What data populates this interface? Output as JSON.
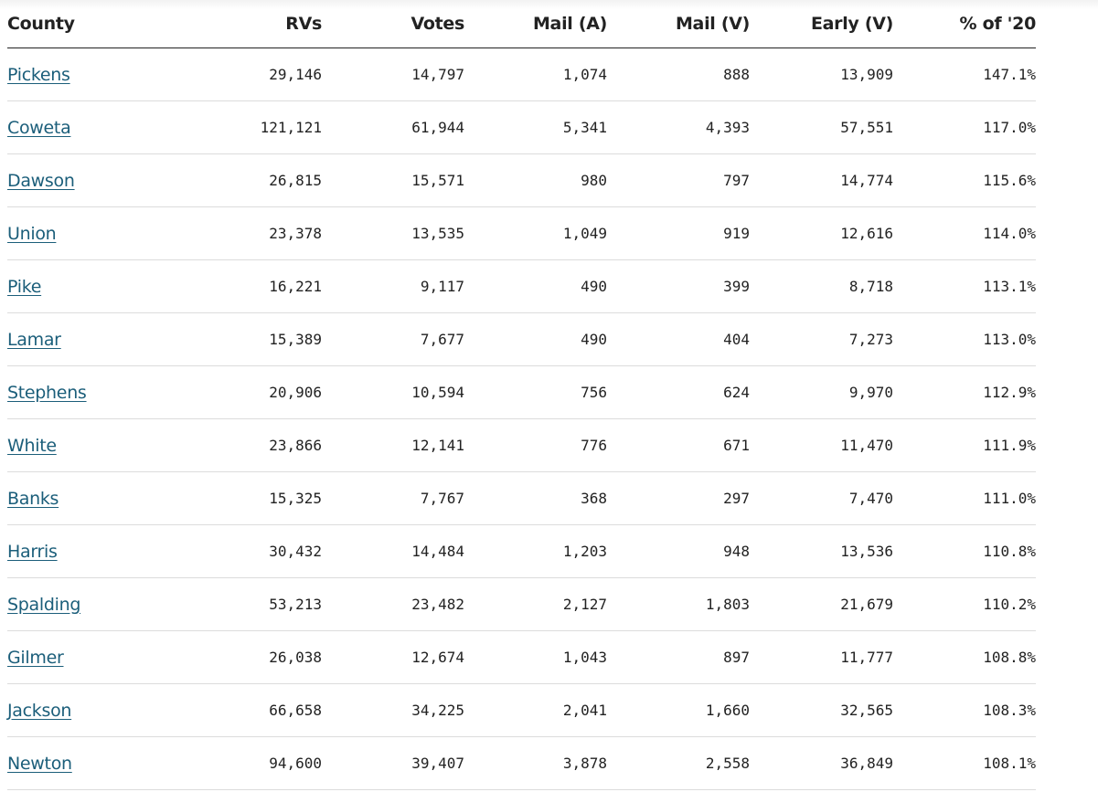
{
  "colors": {
    "link": "#1b5e7a",
    "text": "#222222",
    "row_divider": "#dcdcdc",
    "header_rule": "#222222"
  },
  "table": {
    "headers": [
      "County",
      "RVs",
      "Votes",
      "Mail (A)",
      "Mail (V)",
      "Early (V)",
      "% of '20"
    ],
    "rows": [
      {
        "county": "Pickens",
        "rvs": "29,146",
        "votes": "14,797",
        "mail_a": "1,074",
        "mail_v": "888",
        "early_v": "13,909",
        "pct_2020": "147.1%"
      },
      {
        "county": "Coweta",
        "rvs": "121,121",
        "votes": "61,944",
        "mail_a": "5,341",
        "mail_v": "4,393",
        "early_v": "57,551",
        "pct_2020": "117.0%"
      },
      {
        "county": "Dawson",
        "rvs": "26,815",
        "votes": "15,571",
        "mail_a": "980",
        "mail_v": "797",
        "early_v": "14,774",
        "pct_2020": "115.6%"
      },
      {
        "county": "Union",
        "rvs": "23,378",
        "votes": "13,535",
        "mail_a": "1,049",
        "mail_v": "919",
        "early_v": "12,616",
        "pct_2020": "114.0%"
      },
      {
        "county": "Pike",
        "rvs": "16,221",
        "votes": "9,117",
        "mail_a": "490",
        "mail_v": "399",
        "early_v": "8,718",
        "pct_2020": "113.1%"
      },
      {
        "county": "Lamar",
        "rvs": "15,389",
        "votes": "7,677",
        "mail_a": "490",
        "mail_v": "404",
        "early_v": "7,273",
        "pct_2020": "113.0%"
      },
      {
        "county": "Stephens",
        "rvs": "20,906",
        "votes": "10,594",
        "mail_a": "756",
        "mail_v": "624",
        "early_v": "9,970",
        "pct_2020": "112.9%"
      },
      {
        "county": "White",
        "rvs": "23,866",
        "votes": "12,141",
        "mail_a": "776",
        "mail_v": "671",
        "early_v": "11,470",
        "pct_2020": "111.9%"
      },
      {
        "county": "Banks",
        "rvs": "15,325",
        "votes": "7,767",
        "mail_a": "368",
        "mail_v": "297",
        "early_v": "7,470",
        "pct_2020": "111.0%"
      },
      {
        "county": "Harris",
        "rvs": "30,432",
        "votes": "14,484",
        "mail_a": "1,203",
        "mail_v": "948",
        "early_v": "13,536",
        "pct_2020": "110.8%"
      },
      {
        "county": "Spalding",
        "rvs": "53,213",
        "votes": "23,482",
        "mail_a": "2,127",
        "mail_v": "1,803",
        "early_v": "21,679",
        "pct_2020": "110.2%"
      },
      {
        "county": "Gilmer",
        "rvs": "26,038",
        "votes": "12,674",
        "mail_a": "1,043",
        "mail_v": "897",
        "early_v": "11,777",
        "pct_2020": "108.8%"
      },
      {
        "county": "Jackson",
        "rvs": "66,658",
        "votes": "34,225",
        "mail_a": "2,041",
        "mail_v": "1,660",
        "early_v": "32,565",
        "pct_2020": "108.3%"
      },
      {
        "county": "Newton",
        "rvs": "94,600",
        "votes": "39,407",
        "mail_a": "3,878",
        "mail_v": "2,558",
        "early_v": "36,849",
        "pct_2020": "108.1%"
      }
    ]
  }
}
